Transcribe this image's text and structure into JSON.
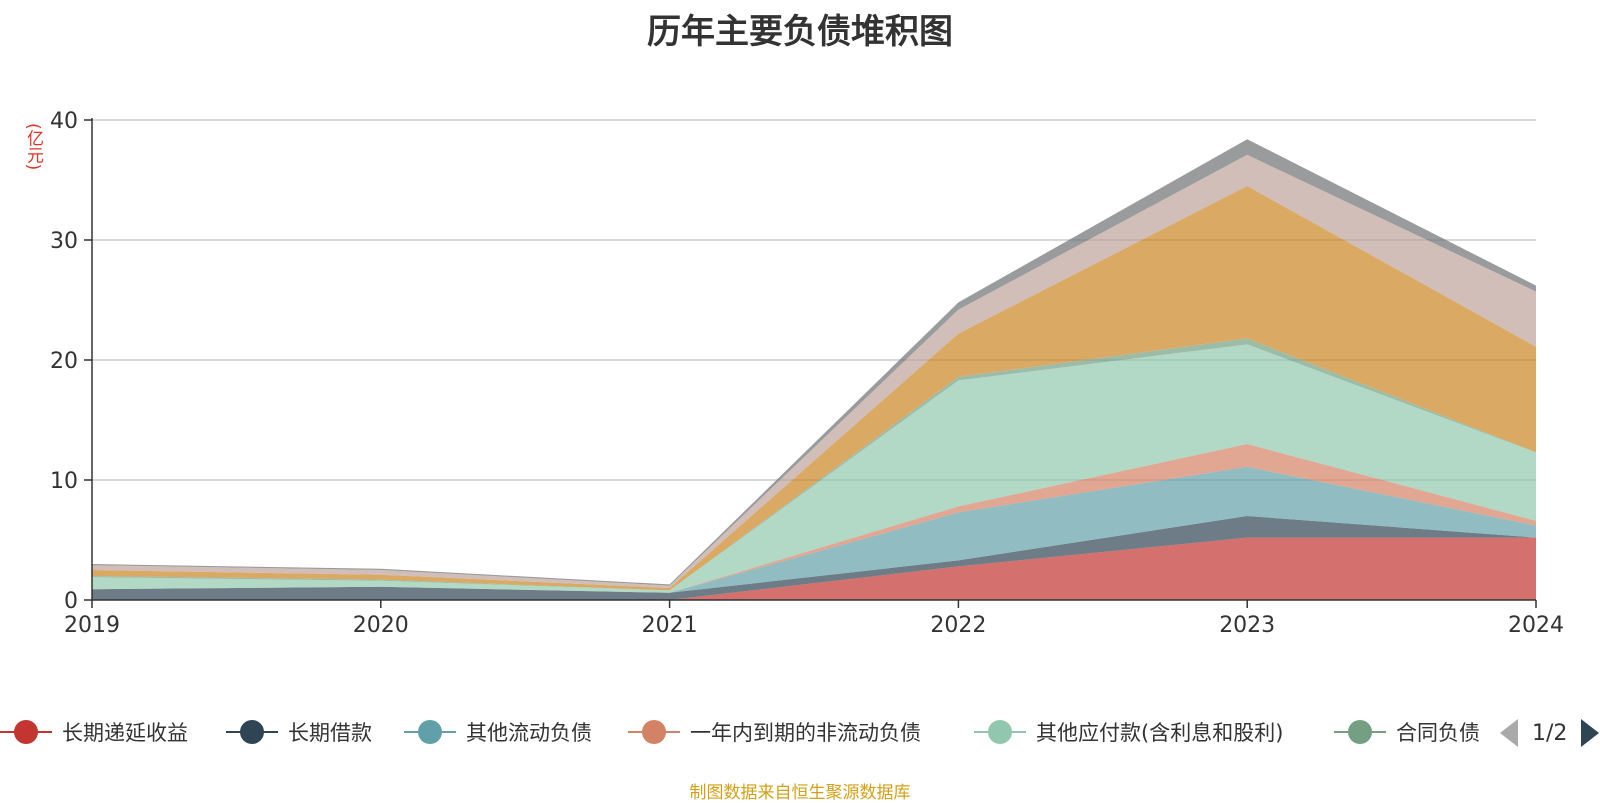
{
  "chart_data": {
    "type": "area",
    "stacked": true,
    "title": "历年主要负债堆积图",
    "ylabel": "(亿元)",
    "xlabel": "",
    "x": [
      "2019",
      "2020",
      "2021",
      "2022",
      "2023",
      "2024"
    ],
    "ylim": [
      0,
      40
    ],
    "yticks": [
      0,
      10,
      20,
      30,
      40
    ],
    "grid": true,
    "legend_position": "bottom",
    "series": [
      {
        "name": "长期递延收益",
        "color": "#c23531",
        "values": [
          0.0,
          0.0,
          0.0,
          2.8,
          5.2,
          5.2
        ]
      },
      {
        "name": "长期借款",
        "color": "#2f4554",
        "values": [
          0.9,
          1.1,
          0.6,
          0.5,
          1.8,
          0.0
        ]
      },
      {
        "name": "其他流动负债",
        "color": "#61a0a8",
        "values": [
          0.0,
          0.0,
          0.0,
          4.0,
          4.1,
          1.0
        ]
      },
      {
        "name": "一年内到期的非流动负债",
        "color": "#d48265",
        "values": [
          0.0,
          0.0,
          0.0,
          0.5,
          1.9,
          0.4
        ]
      },
      {
        "name": "其他应付款(含利息和股利)",
        "color": "#91c7ae",
        "values": [
          1.0,
          0.5,
          0.2,
          10.5,
          8.3,
          5.7
        ]
      },
      {
        "name": "合同负债",
        "color": "#749f83",
        "values": [
          0.1,
          0.1,
          0.0,
          0.3,
          0.5,
          0.0
        ]
      },
      {
        "name": "",
        "color": "#ca8622",
        "values": [
          0.5,
          0.4,
          0.2,
          3.6,
          12.7,
          8.8
        ]
      },
      {
        "name": "",
        "color": "#bda29a",
        "values": [
          0.4,
          0.4,
          0.2,
          2.0,
          2.6,
          4.6
        ]
      },
      {
        "name": "",
        "color": "#6e7074",
        "values": [
          0.1,
          0.1,
          0.1,
          0.6,
          1.3,
          0.5
        ]
      }
    ]
  },
  "legend": {
    "page_text": "1/2"
  },
  "footer": {
    "source_text": "制图数据来自恒生聚源数据库"
  }
}
